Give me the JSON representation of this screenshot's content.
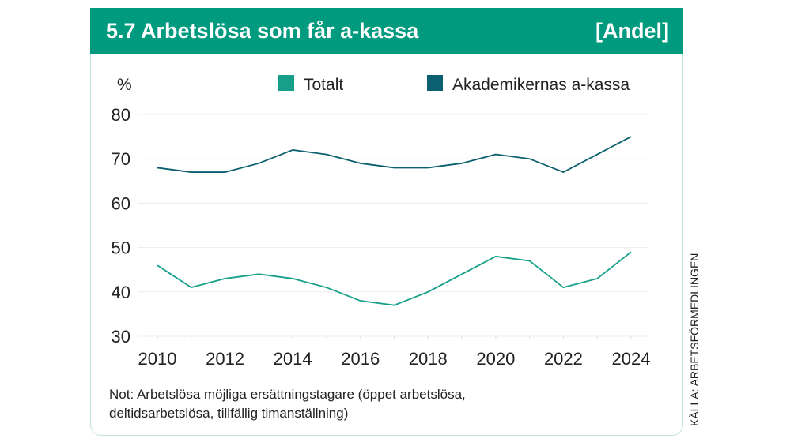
{
  "header": {
    "title": "5.7  Arbetslösa som får a-kassa",
    "unit": "[Andel]"
  },
  "note_line1": "Not: Arbetslösa möjliga ersättningstagare (öppet arbetslösa,",
  "note_line2": "deltidsarbetslösa, tillfällig timanställning)",
  "source": "KÄLLA: ARBETSFÖRMEDLINGEN",
  "chart_data": {
    "type": "line",
    "ylabel": "%",
    "ylim": [
      30,
      80
    ],
    "yticks": [
      30,
      40,
      50,
      60,
      70,
      80
    ],
    "xticks": [
      2010,
      2012,
      2014,
      2016,
      2018,
      2020,
      2022,
      2024
    ],
    "x": [
      2010,
      2011,
      2012,
      2013,
      2014,
      2015,
      2016,
      2017,
      2018,
      2019,
      2020,
      2021,
      2022,
      2023,
      2024
    ],
    "legend": "top",
    "series": [
      {
        "name": "Totalt",
        "color": "#16a08a",
        "values": [
          46,
          41,
          43,
          44,
          43,
          41,
          38,
          37,
          40,
          44,
          48,
          47,
          41,
          43,
          49
        ]
      },
      {
        "name": "Akademikernas a-kassa",
        "color": "#0b5f6e",
        "values": [
          68,
          67,
          67,
          69,
          72,
          71,
          69,
          68,
          68,
          69,
          71,
          70,
          67,
          71,
          75
        ]
      }
    ]
  }
}
